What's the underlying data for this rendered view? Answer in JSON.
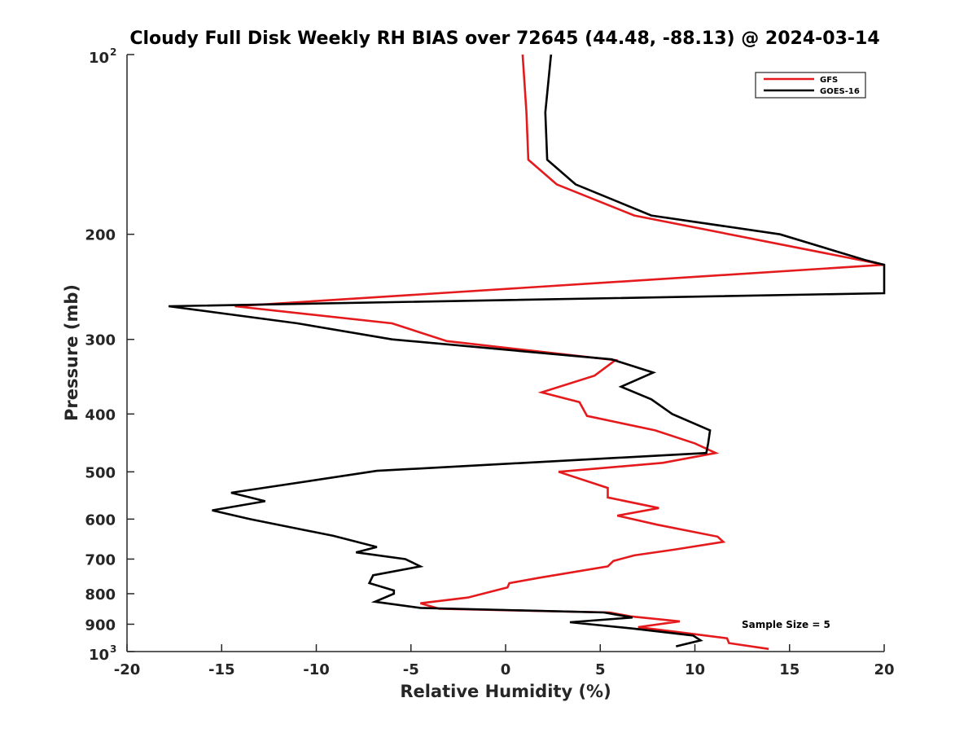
{
  "chart_data": {
    "type": "line",
    "title": "Cloudy Full Disk Weekly RH BIAS over 72645 (44.48, -88.13) @ 2024-03-14",
    "xlabel": "Relative Humidity (%)",
    "ylabel": "Pressure (mb)",
    "xlim": [
      -20,
      20
    ],
    "ylim": [
      100,
      1000
    ],
    "y_scale": "log",
    "y_reversed": true,
    "x_ticks": [
      "-20",
      "-15",
      "-10",
      "-5",
      "0",
      "5",
      "10",
      "15",
      "20"
    ],
    "y_ticks": [
      {
        "base": "10",
        "exp": "2"
      },
      {
        "base": "200",
        "exp": ""
      },
      {
        "base": "300",
        "exp": ""
      },
      {
        "base": "400",
        "exp": ""
      },
      {
        "base": "500",
        "exp": ""
      },
      {
        "base": "600",
        "exp": ""
      },
      {
        "base": "700",
        "exp": ""
      },
      {
        "base": "800",
        "exp": ""
      },
      {
        "base": "900",
        "exp": ""
      },
      {
        "base": "10",
        "exp": "3"
      }
    ],
    "legend_position": "top-right",
    "annotation": "Sample Size = 5",
    "series": [
      {
        "name": "GFS",
        "color": "#e41a1c",
        "points": [
          {
            "p": 100,
            "rh": 0.9
          },
          {
            "p": 125,
            "rh": 1.1
          },
          {
            "p": 150,
            "rh": 1.2
          },
          {
            "p": 165,
            "rh": 2.7
          },
          {
            "p": 186,
            "rh": 6.8
          },
          {
            "p": 225,
            "rh": 20.0
          },
          {
            "p": 264,
            "rh": -14.3
          },
          {
            "p": 282,
            "rh": -6.0
          },
          {
            "p": 302,
            "rh": -3.1
          },
          {
            "p": 325,
            "rh": 5.8
          },
          {
            "p": 345,
            "rh": 4.7
          },
          {
            "p": 368,
            "rh": 1.9
          },
          {
            "p": 382,
            "rh": 3.9
          },
          {
            "p": 403,
            "rh": 4.3
          },
          {
            "p": 426,
            "rh": 7.9
          },
          {
            "p": 448,
            "rh": 10.0
          },
          {
            "p": 465,
            "rh": 11.1
          },
          {
            "p": 483,
            "rh": 8.3
          },
          {
            "p": 500,
            "rh": 2.8
          },
          {
            "p": 532,
            "rh": 5.4
          },
          {
            "p": 552,
            "rh": 5.4
          },
          {
            "p": 575,
            "rh": 8.1
          },
          {
            "p": 592,
            "rh": 5.9
          },
          {
            "p": 613,
            "rh": 8.0
          },
          {
            "p": 642,
            "rh": 11.2
          },
          {
            "p": 655,
            "rh": 11.5
          },
          {
            "p": 675,
            "rh": 8.9
          },
          {
            "p": 690,
            "rh": 6.8
          },
          {
            "p": 705,
            "rh": 5.7
          },
          {
            "p": 720,
            "rh": 5.4
          },
          {
            "p": 752,
            "rh": 1.8
          },
          {
            "p": 768,
            "rh": 0.2
          },
          {
            "p": 781,
            "rh": 0.1
          },
          {
            "p": 812,
            "rh": -2.0
          },
          {
            "p": 830,
            "rh": -4.5
          },
          {
            "p": 848,
            "rh": -3.5
          },
          {
            "p": 860,
            "rh": 5.5
          },
          {
            "p": 873,
            "rh": 6.6
          },
          {
            "p": 890,
            "rh": 9.2
          },
          {
            "p": 910,
            "rh": 7.0
          },
          {
            "p": 930,
            "rh": 9.4
          },
          {
            "p": 950,
            "rh": 11.7
          },
          {
            "p": 968,
            "rh": 11.8
          },
          {
            "p": 990,
            "rh": 13.9
          }
        ]
      },
      {
        "name": "GOES-16",
        "color": "#000000",
        "points": [
          {
            "p": 100,
            "rh": 2.4
          },
          {
            "p": 125,
            "rh": 2.1
          },
          {
            "p": 150,
            "rh": 2.2
          },
          {
            "p": 165,
            "rh": 3.7
          },
          {
            "p": 186,
            "rh": 7.7
          },
          {
            "p": 200,
            "rh": 14.5
          },
          {
            "p": 221,
            "rh": 19.0
          },
          {
            "p": 225,
            "rh": 20.0
          },
          {
            "p": 251,
            "rh": 20.0
          },
          {
            "p": 264,
            "rh": -17.8
          },
          {
            "p": 282,
            "rh": -11.0
          },
          {
            "p": 300,
            "rh": -6.0
          },
          {
            "p": 324,
            "rh": 5.6
          },
          {
            "p": 341,
            "rh": 7.8
          },
          {
            "p": 360,
            "rh": 6.1
          },
          {
            "p": 378,
            "rh": 7.7
          },
          {
            "p": 400,
            "rh": 8.8
          },
          {
            "p": 426,
            "rh": 10.8
          },
          {
            "p": 448,
            "rh": 10.7
          },
          {
            "p": 465,
            "rh": 10.6
          },
          {
            "p": 498,
            "rh": -6.8
          },
          {
            "p": 542,
            "rh": -14.5
          },
          {
            "p": 560,
            "rh": -12.7
          },
          {
            "p": 580,
            "rh": -15.5
          },
          {
            "p": 600,
            "rh": -13.5
          },
          {
            "p": 640,
            "rh": -9.1
          },
          {
            "p": 668,
            "rh": -6.8
          },
          {
            "p": 682,
            "rh": -7.9
          },
          {
            "p": 700,
            "rh": -5.3
          },
          {
            "p": 720,
            "rh": -4.5
          },
          {
            "p": 745,
            "rh": -7.0
          },
          {
            "p": 768,
            "rh": -7.2
          },
          {
            "p": 790,
            "rh": -5.9
          },
          {
            "p": 800,
            "rh": -5.9
          },
          {
            "p": 825,
            "rh": -6.9
          },
          {
            "p": 845,
            "rh": -4.5
          },
          {
            "p": 860,
            "rh": 5.2
          },
          {
            "p": 877,
            "rh": 6.7
          },
          {
            "p": 893,
            "rh": 3.4
          },
          {
            "p": 915,
            "rh": 6.7
          },
          {
            "p": 940,
            "rh": 9.9
          },
          {
            "p": 958,
            "rh": 10.3
          },
          {
            "p": 980,
            "rh": 9.0
          }
        ]
      }
    ]
  }
}
